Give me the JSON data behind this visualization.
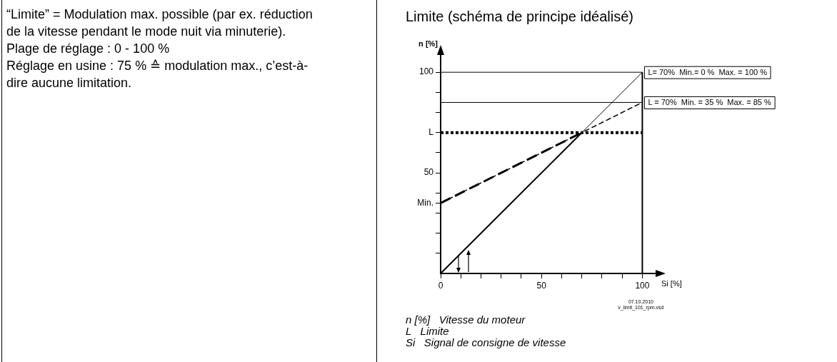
{
  "chart_data": {
    "type": "line",
    "title": "Limite (schéma de principe idéalisé)",
    "xlabel": "Si [%]",
    "ylabel": "n [%]",
    "series": [
      {
        "color": "#000000",
        "line_style": "solid",
        "x": [
          0,
          100
        ],
        "values": [
          0,
          100
        ]
      },
      {
        "color": "#000000",
        "line_style": "solid",
        "x": [
          0,
          70
        ],
        "values": [
          0,
          70
        ]
      },
      {
        "color": "#000000",
        "line_style": "dashed",
        "x": [
          0,
          100
        ],
        "values": [
          35,
          85
        ]
      },
      {
        "color": "#000000",
        "line_style": "dashed",
        "x": [
          0,
          70
        ],
        "values": [
          35,
          70
        ]
      }
    ],
    "xlim": [
      0,
      108
    ],
    "ylim": [
      0,
      110
    ],
    "xticks": [
      0,
      {
        "value": 10,
        "label": null
      },
      {
        "value": 20,
        "label": null
      },
      {
        "value": 30,
        "label": null
      },
      {
        "value": 40,
        "label": null
      },
      50,
      {
        "value": 60,
        "label": null
      },
      {
        "value": 70,
        "label": null
      },
      {
        "value": 80,
        "label": null
      },
      {
        "value": 90,
        "label": null
      },
      100
    ],
    "yticks": [
      {
        "value": 10,
        "label": null
      },
      {
        "value": 20,
        "label": null
      },
      {
        "value": 30,
        "label": null
      },
      {
        "value": 35,
        "label": "Min."
      },
      {
        "value": 40,
        "label": null
      },
      50,
      {
        "value": 60,
        "label": null
      },
      {
        "value": 70,
        "label": "L"
      },
      {
        "value": 80,
        "label": null
      },
      {
        "value": 90,
        "label": null
      },
      100
    ],
    "ref_lines": [
      {
        "axis": "y",
        "value": 100,
        "label": "L= 70%  Min.= 0 %  Max. = 100 %",
        "color": "#000000",
        "line_style": "solid"
      },
      {
        "axis": "y",
        "value": 85,
        "label": "L = 70%  Min. = 35 %  Max. = 85 %",
        "color": "#000000",
        "line_style": "solid"
      },
      {
        "axis": "y",
        "value": 70,
        "color": "#000000",
        "line_style": "dotted"
      },
      {
        "axis": "x",
        "value": 100,
        "color": "#000000",
        "line_style": "solid"
      }
    ],
    "annotations": [
      "“Limite” = Modulation max. possible (par ex. réduction de la vitesse pendant le mode nuit via minuterie).\nPlage de réglage : 0 - 100 %\nRéglage en usine : 75 % ≙ modulation max., c’est-à-dire aucune limitation.",
      "n [%]   Vitesse du moteur",
      "L   Limite",
      "Si   Signal de consigne de vitesse",
      "07.10.2010",
      "v_limit_101_rpm.vsd"
    ],
    "grid": false,
    "legend": false,
    "marker": "none"
  }
}
